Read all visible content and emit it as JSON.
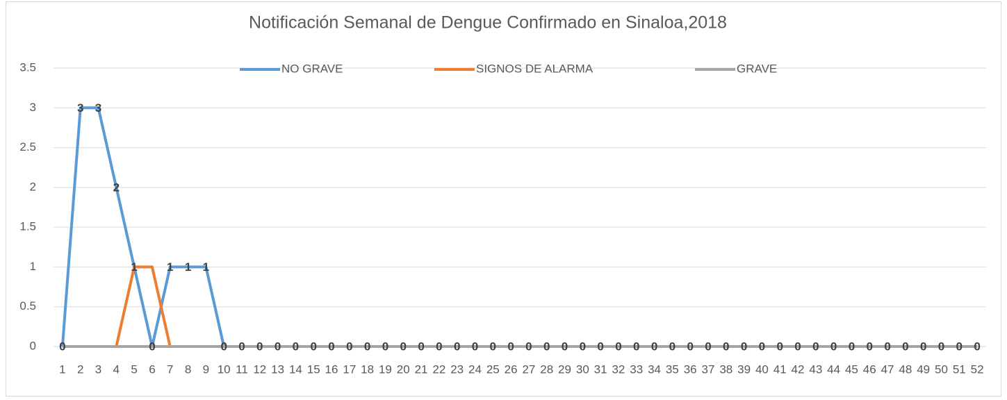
{
  "chart_data": {
    "type": "line",
    "title": "Notificación Semanal de Dengue Confirmado en Sinaloa,2018",
    "categories": [
      "1",
      "2",
      "3",
      "4",
      "5",
      "6",
      "7",
      "8",
      "9",
      "10",
      "11",
      "12",
      "13",
      "14",
      "15",
      "16",
      "17",
      "18",
      "19",
      "20",
      "21",
      "22",
      "23",
      "24",
      "25",
      "26",
      "27",
      "28",
      "29",
      "30",
      "31",
      "32",
      "33",
      "34",
      "35",
      "36",
      "37",
      "38",
      "39",
      "40",
      "41",
      "42",
      "43",
      "44",
      "45",
      "46",
      "47",
      "48",
      "49",
      "50",
      "51",
      "52"
    ],
    "series": [
      {
        "name": "NO GRAVE",
        "color": "#5b9bd5",
        "data_labels": true,
        "values": [
          0,
          3,
          3,
          2,
          1,
          0,
          1,
          1,
          1,
          0,
          0,
          0,
          0,
          0,
          0,
          0,
          0,
          0,
          0,
          0,
          0,
          0,
          0,
          0,
          0,
          0,
          0,
          0,
          0,
          0,
          0,
          0,
          0,
          0,
          0,
          0,
          0,
          0,
          0,
          0,
          0,
          0,
          0,
          0,
          0,
          0,
          0,
          0,
          0,
          0,
          0,
          0
        ]
      },
      {
        "name": "SIGNOS DE ALARMA",
        "color": "#ed7d31",
        "data_labels": false,
        "values": [
          0,
          0,
          0,
          0,
          1,
          1,
          0,
          0,
          0,
          0,
          0,
          0,
          0,
          0,
          0,
          0,
          0,
          0,
          0,
          0,
          0,
          0,
          0,
          0,
          0,
          0,
          0,
          0,
          0,
          0,
          0,
          0,
          0,
          0,
          0,
          0,
          0,
          0,
          0,
          0,
          0,
          0,
          0,
          0,
          0,
          0,
          0,
          0,
          0,
          0,
          0,
          0
        ]
      },
      {
        "name": "GRAVE",
        "color": "#a5a5a5",
        "data_labels": false,
        "values": [
          0,
          0,
          0,
          0,
          0,
          0,
          0,
          0,
          0,
          0,
          0,
          0,
          0,
          0,
          0,
          0,
          0,
          0,
          0,
          0,
          0,
          0,
          0,
          0,
          0,
          0,
          0,
          0,
          0,
          0,
          0,
          0,
          0,
          0,
          0,
          0,
          0,
          0,
          0,
          0,
          0,
          0,
          0,
          0,
          0,
          0,
          0,
          0,
          0,
          0,
          0,
          0
        ]
      }
    ],
    "ylim": [
      0,
      3.5
    ],
    "yticks": [
      0,
      0.5,
      1,
      1.5,
      2,
      2.5,
      3,
      3.5
    ],
    "grid": true,
    "legend": "top"
  }
}
